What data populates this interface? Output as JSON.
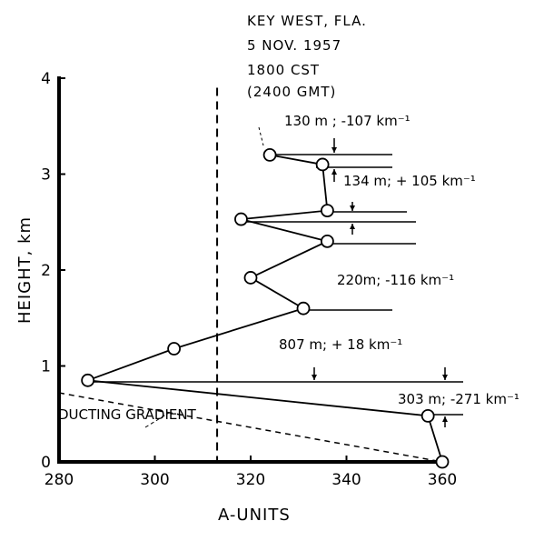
{
  "chart_data": {
    "type": "line",
    "title_lines": [
      "KEY WEST, FLA.",
      "5 NOV. 1957",
      "1800 CST",
      "(2400 GMT)"
    ],
    "xlabel": "A-UNITS",
    "ylabel": "HEIGHT, km",
    "xlim": [
      280,
      360
    ],
    "ylim": [
      0,
      4
    ],
    "x_ticks": [
      280,
      300,
      320,
      340,
      360
    ],
    "x_tick_labels": [
      "280",
      "300",
      "320",
      "340",
      "360"
    ],
    "y_ticks": [
      0,
      1,
      2,
      3,
      4
    ],
    "y_tick_labels": [
      "0",
      "1",
      "2",
      "3",
      "4"
    ],
    "grid": false,
    "series": [
      {
        "x": [
          360,
          357,
          286,
          304,
          331,
          320,
          336,
          318,
          336,
          335,
          324
        ],
        "y": [
          0,
          0.48,
          0.85,
          1.18,
          1.6,
          1.92,
          2.3,
          2.53,
          2.62,
          3.1,
          3.2
        ]
      }
    ],
    "reference_line": {
      "x": 313,
      "style": "dashed"
    },
    "ducting_gradient": {
      "label": "DUCTING GRADIENT",
      "from": [
        280,
        0.72
      ],
      "to": [
        360,
        0
      ]
    },
    "layer_annotations": [
      "130 m ; -107 km⁻¹",
      "134 m; + 105 km⁻¹",
      "220m; -116 km⁻¹",
      "807 m;  + 18 km⁻¹",
      "303 m; -271 km⁻¹"
    ]
  }
}
